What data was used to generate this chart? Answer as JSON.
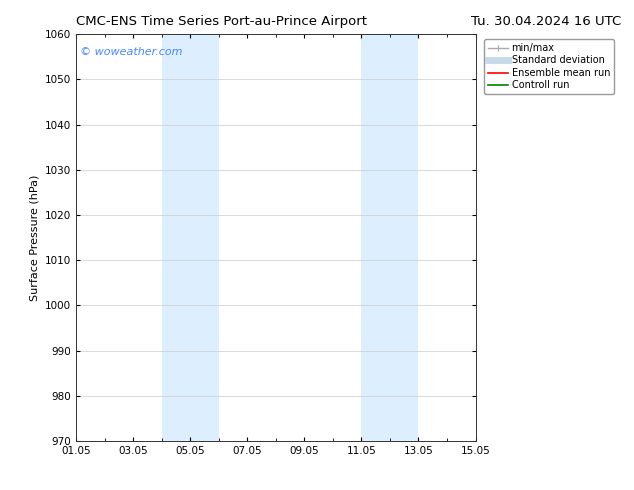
{
  "title_left": "CMC-ENS Time Series Port-au-Prince Airport",
  "title_right": "Tu. 30.04.2024 16 UTC",
  "ylabel": "Surface Pressure (hPa)",
  "xlim": [
    0,
    14
  ],
  "ylim": [
    970,
    1060
  ],
  "yticks": [
    970,
    980,
    990,
    1000,
    1010,
    1020,
    1030,
    1040,
    1050,
    1060
  ],
  "xtick_labels": [
    "01.05",
    "03.05",
    "05.05",
    "07.05",
    "09.05",
    "11.05",
    "13.05",
    "15.05"
  ],
  "xtick_positions": [
    0,
    2,
    4,
    6,
    8,
    10,
    12,
    14
  ],
  "shaded_bands": [
    {
      "x_start": 3.0,
      "x_end": 5.0,
      "color": "#ddeeff"
    },
    {
      "x_start": 10.0,
      "x_end": 12.0,
      "color": "#ddeeff"
    }
  ],
  "watermark_text": "© woweather.com",
  "watermark_color": "#4488ff",
  "legend_entries": [
    {
      "label": "min/max",
      "color": "#aaaaaa",
      "linestyle": "-",
      "linewidth": 1.0
    },
    {
      "label": "Standard deviation",
      "color": "#c8daea",
      "linestyle": "-",
      "linewidth": 5
    },
    {
      "label": "Ensemble mean run",
      "color": "red",
      "linestyle": "-",
      "linewidth": 1.2
    },
    {
      "label": "Controll run",
      "color": "green",
      "linestyle": "-",
      "linewidth": 1.2
    }
  ],
  "bg_color": "#ffffff",
  "grid_color": "#cccccc",
  "title_fontsize": 9.5,
  "label_fontsize": 8,
  "tick_fontsize": 7.5,
  "watermark_fontsize": 8
}
